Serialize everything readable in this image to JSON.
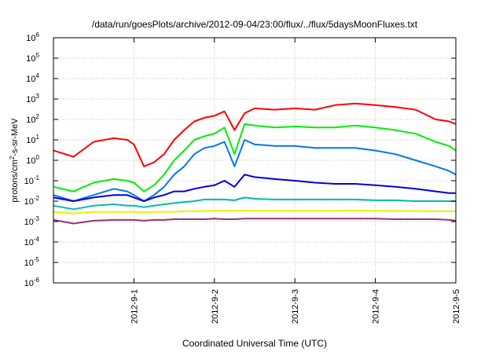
{
  "chart_data": {
    "type": "line",
    "title": "/data/run/goesPlots/archive/2012-09-04/23:00/flux/../flux/5daysMoonFluxes.txt",
    "xlabel": "Coordinated Universal Time (UTC)",
    "ylabel_parts": [
      "protons/cm",
      "2",
      "-s-sr-MeV"
    ],
    "y_scale": "log",
    "ylim": [
      1e-06,
      1000000.0
    ],
    "xlim": [
      "2012-08-31",
      "2012-09-05"
    ],
    "grid": true,
    "x_ticks": [
      {
        "value": "2012-09-01",
        "label": "2012-9-1"
      },
      {
        "value": "2012-09-02",
        "label": "2012-9-2"
      },
      {
        "value": "2012-09-03",
        "label": "2012-9-3"
      },
      {
        "value": "2012-09-04",
        "label": "2012-9-4"
      },
      {
        "value": "2012-09-05",
        "label": "2012-9-5"
      }
    ],
    "y_ticks": [
      {
        "exp": -6,
        "base": "10",
        "sup": "-6"
      },
      {
        "exp": -5,
        "base": "10",
        "sup": "-5"
      },
      {
        "exp": -4,
        "base": "10",
        "sup": "-4"
      },
      {
        "exp": -3,
        "base": "10",
        "sup": "-3"
      },
      {
        "exp": -2,
        "base": "10",
        "sup": "-2"
      },
      {
        "exp": -1,
        "base": "10",
        "sup": "-1"
      },
      {
        "exp": 0,
        "base": "10",
        "sup": "0"
      },
      {
        "exp": 1,
        "base": "10",
        "sup": "1"
      },
      {
        "exp": 2,
        "base": "10",
        "sup": "2"
      },
      {
        "exp": 3,
        "base": "10",
        "sup": "3"
      },
      {
        "exp": 4,
        "base": "10",
        "sup": "4"
      },
      {
        "exp": 5,
        "base": "10",
        "sup": "5"
      },
      {
        "exp": 6,
        "base": "10",
        "sup": "6"
      }
    ],
    "x": [
      "2012-08-31T00:00",
      "2012-08-31T06:00",
      "2012-08-31T12:00",
      "2012-08-31T18:00",
      "2012-08-31T22:00",
      "2012-09-01T00:00",
      "2012-09-01T03:00",
      "2012-09-01T06:00",
      "2012-09-01T09:00",
      "2012-09-01T12:00",
      "2012-09-01T15:00",
      "2012-09-01T18:00",
      "2012-09-01T21:00",
      "2012-09-02T00:00",
      "2012-09-02T03:00",
      "2012-09-02T06:00",
      "2012-09-02T09:00",
      "2012-09-02T12:00",
      "2012-09-02T18:00",
      "2012-09-03T00:00",
      "2012-09-03T06:00",
      "2012-09-03T12:00",
      "2012-09-03T18:00",
      "2012-09-04T00:00",
      "2012-09-04T06:00",
      "2012-09-04T12:00",
      "2012-09-04T18:00",
      "2012-09-04T22:00",
      "2012-09-05T00:00"
    ],
    "series": [
      {
        "color": "#ff0000",
        "values": [
          3,
          1.5,
          8,
          12,
          10,
          6,
          0.5,
          0.8,
          2,
          10,
          30,
          80,
          120,
          150,
          250,
          30,
          200,
          350,
          300,
          350,
          300,
          500,
          600,
          500,
          400,
          300,
          100,
          80,
          60
        ]
      },
      {
        "color": "#00ee00",
        "values": [
          0.05,
          0.03,
          0.08,
          0.12,
          0.1,
          0.08,
          0.03,
          0.06,
          0.2,
          1,
          3,
          10,
          15,
          20,
          40,
          2,
          60,
          50,
          40,
          45,
          40,
          40,
          50,
          40,
          30,
          20,
          8,
          5,
          3
        ]
      },
      {
        "color": "#0077ee",
        "values": [
          0.02,
          0.01,
          0.02,
          0.04,
          0.03,
          0.02,
          0.01,
          0.02,
          0.05,
          0.2,
          0.5,
          2,
          4,
          5,
          8,
          0.5,
          10,
          6,
          5,
          5,
          4,
          4,
          4,
          3,
          2,
          1,
          0.5,
          0.3,
          0.2
        ]
      },
      {
        "color": "#0000dd",
        "values": [
          0.015,
          0.01,
          0.015,
          0.02,
          0.02,
          0.015,
          0.01,
          0.015,
          0.02,
          0.03,
          0.03,
          0.04,
          0.05,
          0.06,
          0.1,
          0.05,
          0.2,
          0.15,
          0.12,
          0.1,
          0.08,
          0.07,
          0.07,
          0.06,
          0.05,
          0.04,
          0.03,
          0.025,
          0.025
        ]
      },
      {
        "color": "#00bbaa",
        "values": [
          0.006,
          0.004,
          0.006,
          0.007,
          0.006,
          0.006,
          0.005,
          0.006,
          0.007,
          0.008,
          0.009,
          0.01,
          0.012,
          0.012,
          0.012,
          0.011,
          0.015,
          0.013,
          0.012,
          0.012,
          0.012,
          0.012,
          0.012,
          0.011,
          0.011,
          0.01,
          0.01,
          0.01,
          0.01
        ]
      },
      {
        "color": "#eeee00",
        "values": [
          0.003,
          0.0025,
          0.003,
          0.003,
          0.003,
          0.003,
          0.0028,
          0.003,
          0.003,
          0.003,
          0.0032,
          0.0032,
          0.0033,
          0.0034,
          0.0034,
          0.0033,
          0.0035,
          0.0034,
          0.0034,
          0.0034,
          0.0034,
          0.0034,
          0.0035,
          0.0034,
          0.0033,
          0.0033,
          0.0032,
          0.0032,
          0.0032
        ]
      },
      {
        "color": "#993366",
        "values": [
          0.0012,
          0.0008,
          0.0011,
          0.0012,
          0.0012,
          0.0012,
          0.0011,
          0.0012,
          0.0012,
          0.0013,
          0.0013,
          0.0013,
          0.0013,
          0.0014,
          0.0013,
          0.0013,
          0.0014,
          0.0014,
          0.0014,
          0.0014,
          0.0014,
          0.0014,
          0.0014,
          0.0014,
          0.0013,
          0.0013,
          0.0013,
          0.0012,
          0.0011
        ]
      }
    ]
  }
}
